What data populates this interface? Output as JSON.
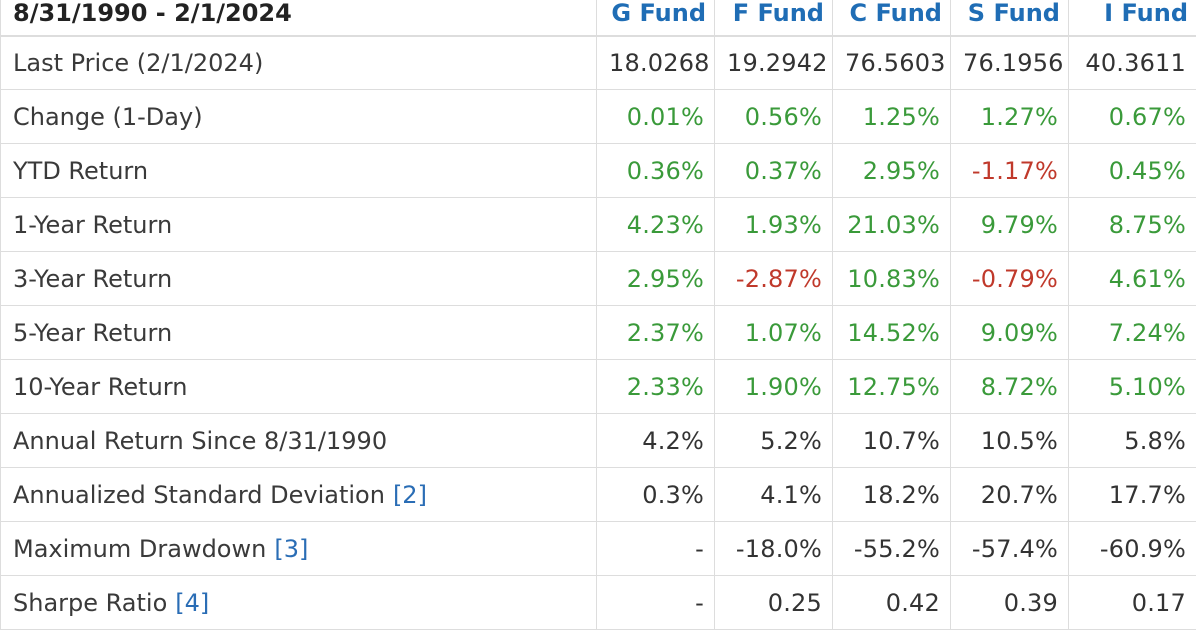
{
  "table": {
    "period_label": "8/31/1990 - 2/1/2024",
    "funds": [
      "G Fund",
      "F Fund",
      "C Fund",
      "S Fund",
      "I Fund"
    ],
    "rows": [
      {
        "label": "Last Price (2/1/2024)",
        "ref": "",
        "values": [
          "18.0268",
          "19.2942",
          "76.5603",
          "76.1956",
          "40.3611"
        ],
        "signs": [
          "neutral",
          "neutral",
          "neutral",
          "neutral",
          "neutral"
        ]
      },
      {
        "label": "Change (1-Day)",
        "ref": "",
        "values": [
          "0.01%",
          "0.56%",
          "1.25%",
          "1.27%",
          "0.67%"
        ],
        "signs": [
          "pos",
          "pos",
          "pos",
          "pos",
          "pos"
        ]
      },
      {
        "label": "YTD Return",
        "ref": "",
        "values": [
          "0.36%",
          "0.37%",
          "2.95%",
          "-1.17%",
          "0.45%"
        ],
        "signs": [
          "pos",
          "pos",
          "pos",
          "neg",
          "pos"
        ]
      },
      {
        "label": "1-Year Return",
        "ref": "",
        "values": [
          "4.23%",
          "1.93%",
          "21.03%",
          "9.79%",
          "8.75%"
        ],
        "signs": [
          "pos",
          "pos",
          "pos",
          "pos",
          "pos"
        ]
      },
      {
        "label": "3-Year Return",
        "ref": "",
        "values": [
          "2.95%",
          "-2.87%",
          "10.83%",
          "-0.79%",
          "4.61%"
        ],
        "signs": [
          "pos",
          "neg",
          "pos",
          "neg",
          "pos"
        ]
      },
      {
        "label": "5-Year Return",
        "ref": "",
        "values": [
          "2.37%",
          "1.07%",
          "14.52%",
          "9.09%",
          "7.24%"
        ],
        "signs": [
          "pos",
          "pos",
          "pos",
          "pos",
          "pos"
        ]
      },
      {
        "label": "10-Year Return",
        "ref": "",
        "values": [
          "2.33%",
          "1.90%",
          "12.75%",
          "8.72%",
          "5.10%"
        ],
        "signs": [
          "pos",
          "pos",
          "pos",
          "pos",
          "pos"
        ]
      },
      {
        "label": "Annual Return Since 8/31/1990",
        "ref": "",
        "values": [
          "4.2%",
          "5.2%",
          "10.7%",
          "10.5%",
          "5.8%"
        ],
        "signs": [
          "neutral",
          "neutral",
          "neutral",
          "neutral",
          "neutral"
        ]
      },
      {
        "label": "Annualized Standard Deviation",
        "ref": "[2]",
        "values": [
          "0.3%",
          "4.1%",
          "18.2%",
          "20.7%",
          "17.7%"
        ],
        "signs": [
          "neutral",
          "neutral",
          "neutral",
          "neutral",
          "neutral"
        ]
      },
      {
        "label": "Maximum Drawdown",
        "ref": "[3]",
        "values": [
          "-",
          "-18.0%",
          "-55.2%",
          "-57.4%",
          "-60.9%"
        ],
        "signs": [
          "neutral",
          "neutral",
          "neutral",
          "neutral",
          "neutral"
        ]
      },
      {
        "label": "Sharpe Ratio",
        "ref": "[4]",
        "values": [
          "-",
          "0.25",
          "0.42",
          "0.39",
          "0.17"
        ],
        "signs": [
          "neutral",
          "neutral",
          "neutral",
          "neutral",
          "neutral"
        ]
      }
    ]
  },
  "colors": {
    "positive": "#3a9a3a",
    "negative": "#c0392b",
    "header_link": "#1f6db5",
    "border": "#dddddd"
  }
}
